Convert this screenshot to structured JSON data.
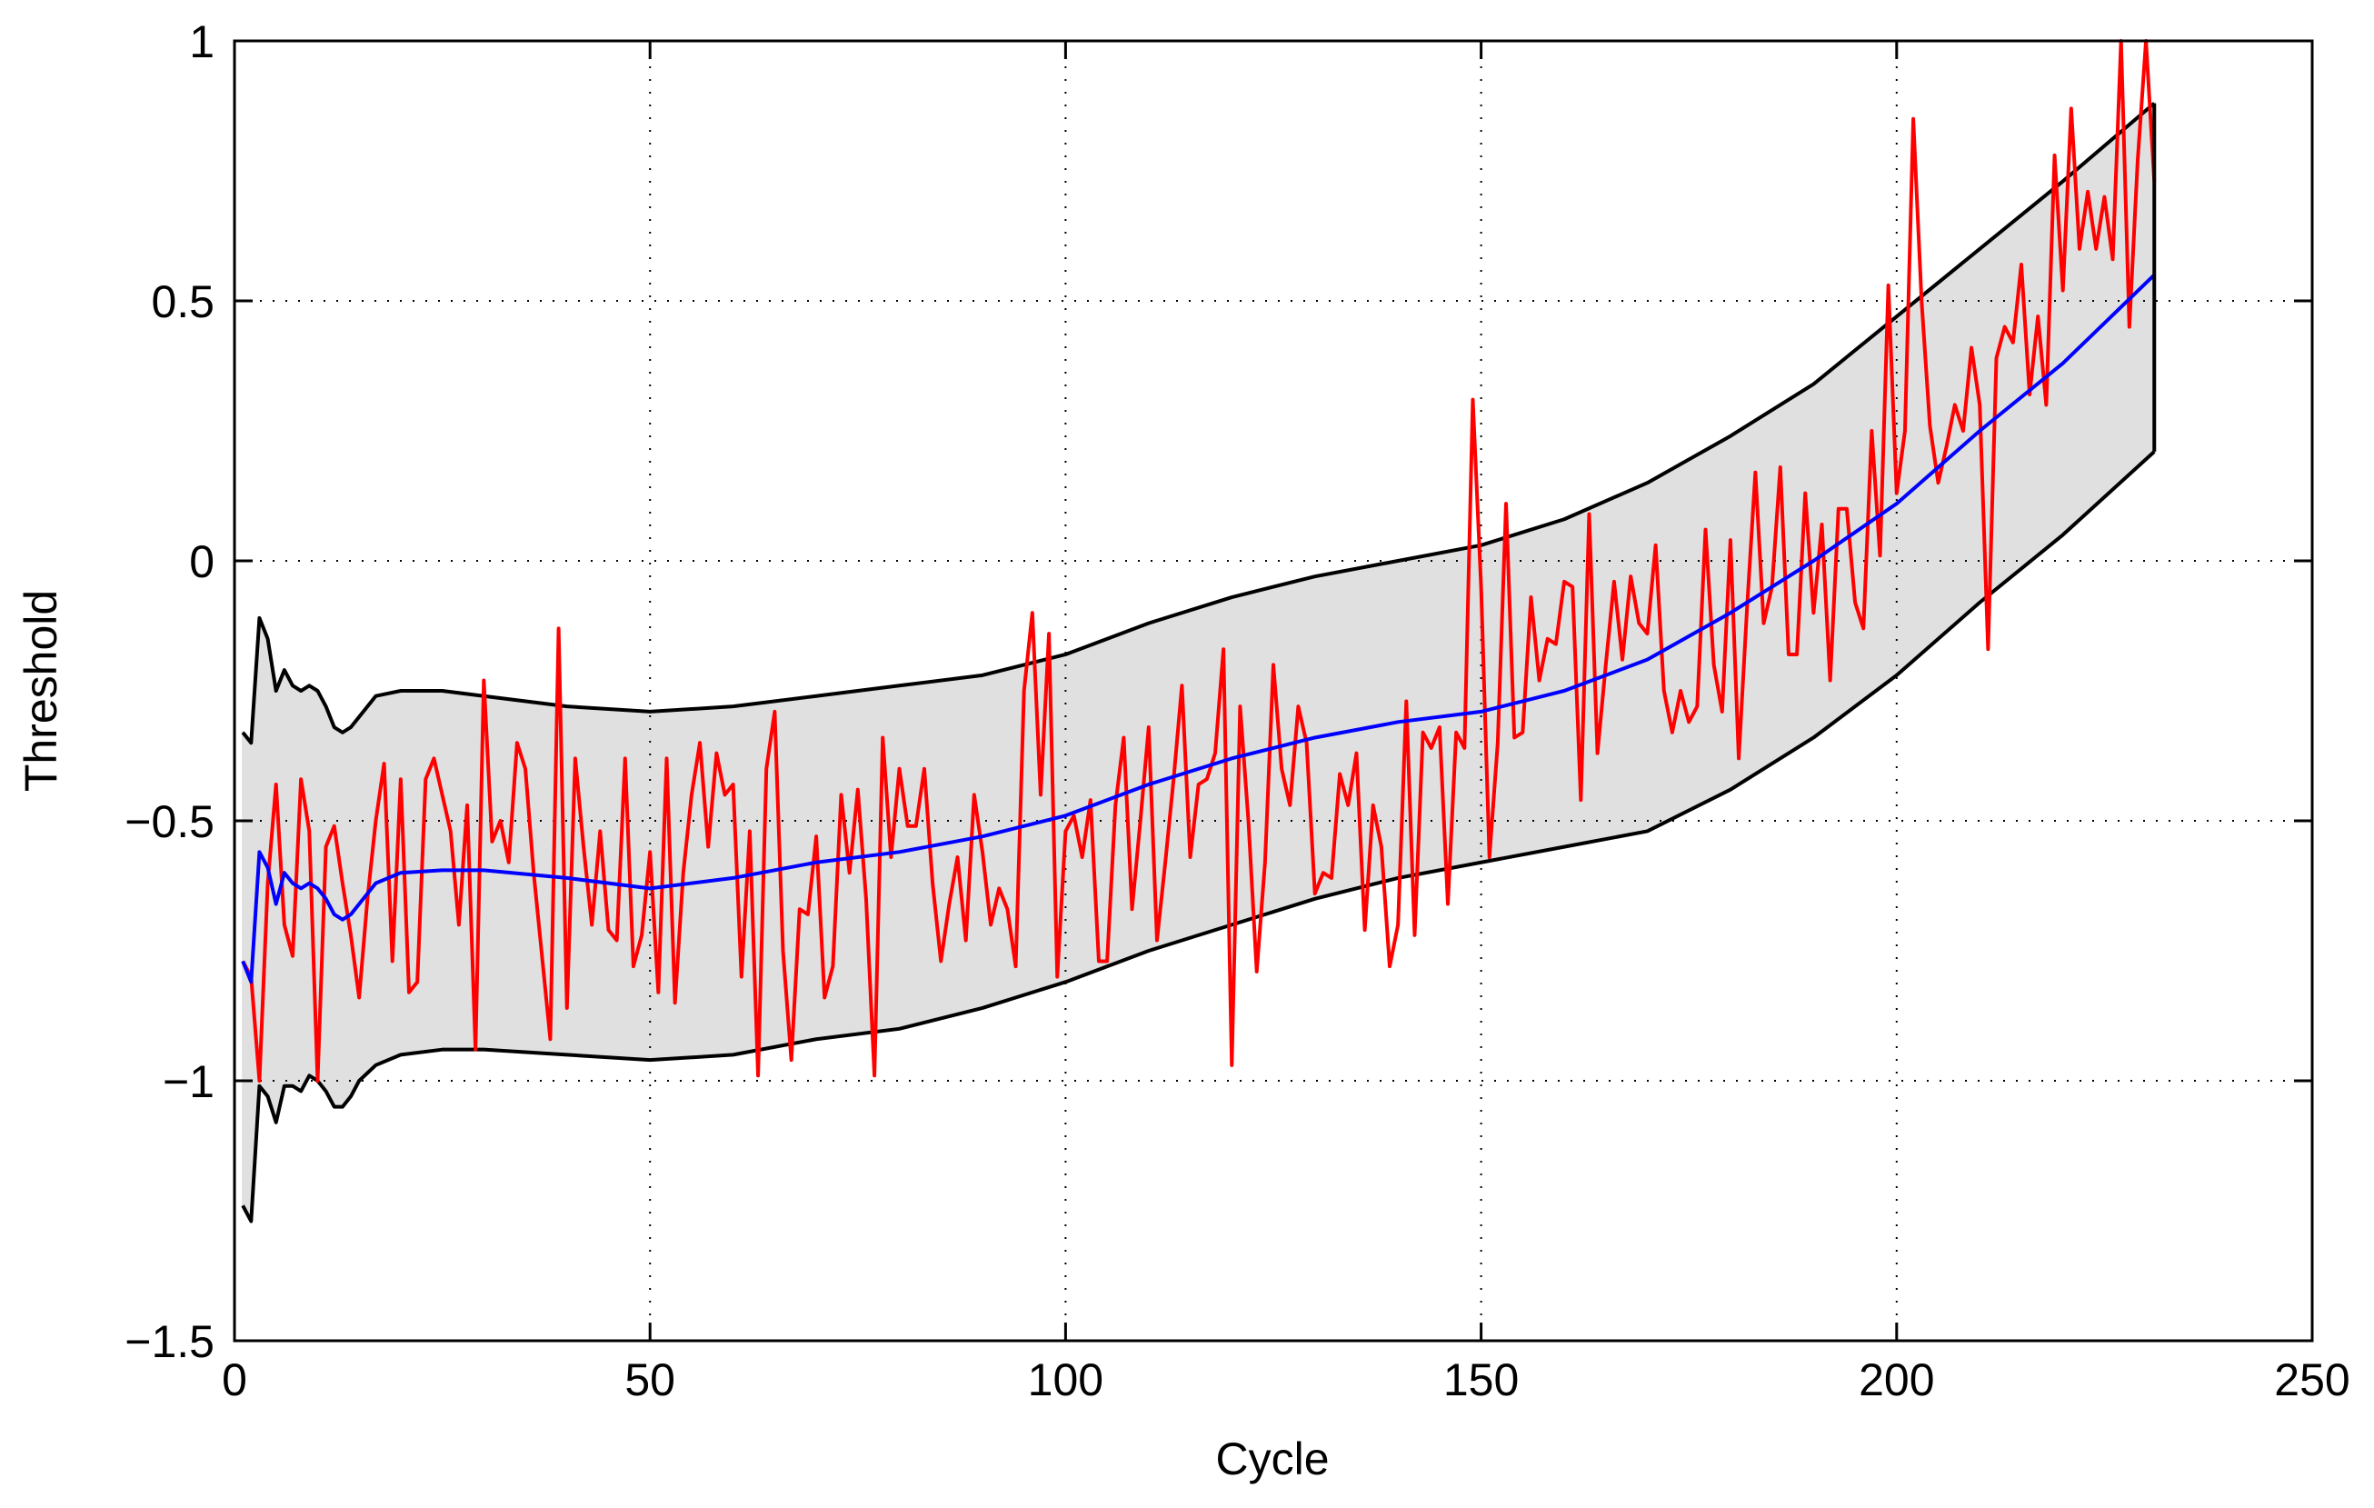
{
  "chart_data": {
    "type": "line",
    "xlabel": "Cycle",
    "ylabel": "Threshold",
    "xlim": [
      0,
      250
    ],
    "ylim": [
      -1.5,
      1
    ],
    "xticks": [
      0,
      50,
      100,
      150,
      200,
      250
    ],
    "yticks": [
      {
        "value": -1.5,
        "label": "−1.5"
      },
      {
        "value": -1,
        "label": "−1"
      },
      {
        "value": -0.5,
        "label": "−0.5"
      },
      0,
      0.5,
      1
    ],
    "grid": true,
    "band": {
      "color": "#e0e0e0"
    },
    "series": [
      {
        "color": "#000000",
        "x": [
          1,
          2,
          3,
          4,
          5,
          6,
          7,
          8,
          9,
          10,
          11,
          12,
          13,
          14,
          15,
          17,
          20,
          25,
          30,
          40,
          50,
          60,
          70,
          80,
          90,
          100,
          110,
          120,
          130,
          140,
          150,
          160,
          170,
          180,
          190,
          200,
          210,
          220,
          231
        ],
        "values": [
          -0.33,
          -0.35,
          -0.11,
          -0.15,
          -0.25,
          -0.21,
          -0.24,
          -0.25,
          -0.24,
          -0.25,
          -0.28,
          -0.32,
          -0.33,
          -0.32,
          -0.3,
          -0.26,
          -0.25,
          -0.25,
          -0.26,
          -0.28,
          -0.29,
          -0.28,
          -0.26,
          -0.24,
          -0.22,
          -0.18,
          -0.12,
          -0.07,
          -0.03,
          0.0,
          0.03,
          0.08,
          0.15,
          0.24,
          0.34,
          0.47,
          0.6,
          0.73,
          0.88
        ]
      },
      {
        "color": "#000000",
        "x": [
          1,
          2,
          3,
          4,
          5,
          6,
          7,
          8,
          9,
          10,
          11,
          12,
          13,
          14,
          15,
          17,
          20,
          25,
          30,
          40,
          50,
          60,
          70,
          80,
          90,
          100,
          110,
          120,
          130,
          140,
          150,
          160,
          170,
          180,
          190,
          200,
          210,
          220,
          231
        ],
        "values": [
          -1.24,
          -1.27,
          -1.01,
          -1.03,
          -1.08,
          -1.01,
          -1.01,
          -1.02,
          -0.99,
          -1.0,
          -1.02,
          -1.05,
          -1.05,
          -1.03,
          -1.0,
          -0.97,
          -0.95,
          -0.94,
          -0.94,
          -0.95,
          -0.96,
          -0.95,
          -0.92,
          -0.9,
          -0.86,
          -0.81,
          -0.75,
          -0.7,
          -0.65,
          -0.61,
          -0.58,
          -0.55,
          -0.52,
          -0.44,
          -0.34,
          -0.22,
          -0.08,
          0.05,
          0.21
        ]
      },
      {
        "color": "#ff0000",
        "x": [
          1,
          2,
          3,
          4,
          5,
          6,
          7,
          8,
          9,
          10,
          11,
          12,
          13,
          14,
          15,
          16,
          17,
          18,
          19,
          20,
          21,
          22,
          23,
          24,
          25,
          26,
          27,
          28,
          29,
          30,
          31,
          32,
          33,
          34,
          35,
          36,
          37,
          38,
          39,
          40,
          41,
          42,
          43,
          44,
          45,
          46,
          47,
          48,
          49,
          50,
          51,
          52,
          53,
          54,
          55,
          56,
          57,
          58,
          59,
          60,
          61,
          62,
          63,
          64,
          65,
          66,
          67,
          68,
          69,
          70,
          71,
          72,
          73,
          74,
          75,
          76,
          77,
          78,
          79,
          80,
          81,
          82,
          83,
          84,
          85,
          86,
          87,
          88,
          89,
          90,
          91,
          92,
          93,
          94,
          95,
          96,
          97,
          98,
          99,
          100,
          101,
          102,
          103,
          104,
          105,
          106,
          107,
          108,
          109,
          110,
          111,
          112,
          113,
          114,
          115,
          116,
          117,
          118,
          119,
          120,
          121,
          122,
          123,
          124,
          125,
          126,
          127,
          128,
          129,
          130,
          131,
          132,
          133,
          134,
          135,
          136,
          137,
          138,
          139,
          140,
          141,
          142,
          143,
          144,
          145,
          146,
          147,
          148,
          149,
          150,
          151,
          152,
          153,
          154,
          155,
          156,
          157,
          158,
          159,
          160,
          161,
          162,
          163,
          164,
          165,
          166,
          167,
          168,
          169,
          170,
          171,
          172,
          173,
          174,
          175,
          176,
          177,
          178,
          179,
          180,
          181,
          182,
          183,
          184,
          185,
          186,
          187,
          188,
          189,
          190,
          191,
          192,
          193,
          194,
          195,
          196,
          197,
          198,
          199,
          200,
          201,
          202,
          203,
          204,
          205,
          206,
          207,
          208,
          209,
          210,
          211,
          212,
          213,
          214,
          215,
          216,
          217,
          218,
          219,
          220,
          221,
          222,
          223,
          224,
          225,
          226,
          227,
          228,
          229,
          230,
          231
        ],
        "values": [
          -0.77,
          -0.8,
          -1.0,
          -0.62,
          -0.43,
          -0.7,
          -0.76,
          -0.42,
          -0.52,
          -1.0,
          -0.55,
          -0.51,
          -0.62,
          -0.72,
          -0.84,
          -0.65,
          -0.5,
          -0.39,
          -0.77,
          -0.42,
          -0.83,
          -0.81,
          -0.42,
          -0.38,
          -0.45,
          -0.52,
          -0.7,
          -0.47,
          -0.94,
          -0.23,
          -0.54,
          -0.5,
          -0.58,
          -0.35,
          -0.4,
          -0.6,
          -0.76,
          -0.92,
          -0.13,
          -0.86,
          -0.38,
          -0.55,
          -0.7,
          -0.52,
          -0.71,
          -0.73,
          -0.38,
          -0.78,
          -0.72,
          -0.56,
          -0.83,
          -0.38,
          -0.85,
          -0.6,
          -0.45,
          -0.35,
          -0.55,
          -0.37,
          -0.45,
          -0.43,
          -0.8,
          -0.52,
          -0.99,
          -0.4,
          -0.29,
          -0.75,
          -0.96,
          -0.67,
          -0.68,
          -0.53,
          -0.84,
          -0.78,
          -0.45,
          -0.6,
          -0.44,
          -0.65,
          -0.99,
          -0.34,
          -0.57,
          -0.4,
          -0.51,
          -0.51,
          -0.4,
          -0.62,
          -0.77,
          -0.66,
          -0.57,
          -0.73,
          -0.45,
          -0.56,
          -0.7,
          -0.63,
          -0.67,
          -0.78,
          -0.25,
          -0.1,
          -0.45,
          -0.14,
          -0.8,
          -0.52,
          -0.49,
          -0.57,
          -0.46,
          -0.77,
          -0.77,
          -0.47,
          -0.34,
          -0.67,
          -0.5,
          -0.32,
          -0.73,
          -0.58,
          -0.42,
          -0.24,
          -0.57,
          -0.43,
          -0.42,
          -0.37,
          -0.17,
          -0.97,
          -0.28,
          -0.5,
          -0.79,
          -0.58,
          -0.2,
          -0.4,
          -0.47,
          -0.28,
          -0.35,
          -0.64,
          -0.6,
          -0.61,
          -0.41,
          -0.47,
          -0.37,
          -0.71,
          -0.47,
          -0.55,
          -0.78,
          -0.7,
          -0.27,
          -0.72,
          -0.33,
          -0.36,
          -0.32,
          -0.66,
          -0.33,
          -0.36,
          0.31,
          -0.05,
          -0.57,
          -0.35,
          0.11,
          -0.34,
          -0.33,
          -0.07,
          -0.23,
          -0.15,
          -0.16,
          -0.04,
          -0.05,
          -0.46,
          0.09,
          -0.37,
          -0.2,
          -0.04,
          -0.19,
          -0.03,
          -0.12,
          -0.14,
          0.03,
          -0.25,
          -0.33,
          -0.25,
          -0.31,
          -0.28,
          0.06,
          -0.2,
          -0.29,
          0.04,
          -0.38,
          -0.09,
          0.17,
          -0.12,
          -0.05,
          0.18,
          -0.18,
          -0.18,
          0.13,
          -0.1,
          0.07,
          -0.23,
          0.1,
          0.1,
          -0.08,
          -0.13,
          0.25,
          0.01,
          0.53,
          0.13,
          0.25,
          0.85,
          0.5,
          0.26,
          0.15,
          0.22,
          0.3,
          0.25,
          0.41,
          0.3,
          -0.17,
          0.39,
          0.45,
          0.42,
          0.57,
          0.32,
          0.47,
          0.3,
          0.78,
          0.52,
          0.87,
          0.6,
          0.71,
          0.6,
          0.7,
          0.58,
          1.0,
          0.45,
          0.77,
          1.0,
          0.73
        ]
      },
      {
        "color": "#0000ff",
        "x": [
          1,
          2,
          3,
          4,
          5,
          6,
          7,
          8,
          9,
          10,
          11,
          12,
          13,
          14,
          15,
          17,
          20,
          25,
          30,
          40,
          50,
          60,
          70,
          80,
          90,
          100,
          110,
          120,
          130,
          140,
          150,
          160,
          170,
          180,
          190,
          200,
          210,
          220,
          231
        ],
        "values": [
          -0.77,
          -0.81,
          -0.56,
          -0.59,
          -0.66,
          -0.6,
          -0.62,
          -0.63,
          -0.62,
          -0.63,
          -0.65,
          -0.68,
          -0.69,
          -0.68,
          -0.66,
          -0.62,
          -0.6,
          -0.595,
          -0.595,
          -0.61,
          -0.63,
          -0.61,
          -0.58,
          -0.56,
          -0.53,
          -0.49,
          -0.43,
          -0.38,
          -0.34,
          -0.31,
          -0.29,
          -0.25,
          -0.19,
          -0.1,
          0.0,
          0.11,
          0.25,
          0.38,
          0.55
        ]
      }
    ]
  }
}
